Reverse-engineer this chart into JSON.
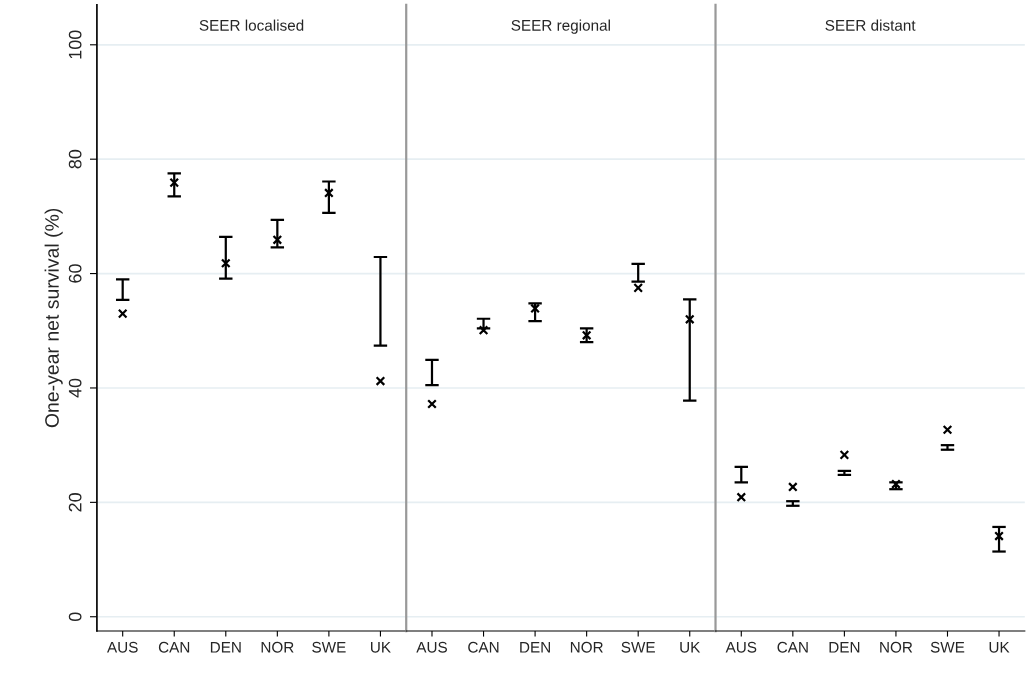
{
  "chart_data": [
    {
      "type": "scatter",
      "title": "SEER localised",
      "ylabel": "One-year net survival (%)",
      "categories": [
        "AUS",
        "CAN",
        "DEN",
        "NOR",
        "SWE",
        "UK"
      ],
      "ylim": [
        -2.5,
        107
      ],
      "yticks": [
        0,
        20,
        40,
        60,
        80,
        100
      ],
      "grid": "y",
      "marker": "cross",
      "series": [
        {
          "color": "#000000",
          "values": [
            53.0,
            75.9,
            61.8,
            65.9,
            74.1,
            41.2
          ],
          "errors": [
            [
              55.4,
              59.0
            ],
            [
              73.5,
              77.5
            ],
            [
              59.1,
              66.4
            ],
            [
              64.6,
              69.4
            ],
            [
              70.6,
              76.1
            ],
            [
              47.4,
              62.9
            ]
          ]
        }
      ]
    },
    {
      "type": "scatter",
      "title": "SEER regional",
      "categories": [
        "AUS",
        "CAN",
        "DEN",
        "NOR",
        "SWE",
        "UK"
      ],
      "ylim": [
        -2.5,
        107
      ],
      "yticks": [
        0,
        20,
        40,
        60,
        80,
        100
      ],
      "grid": "y",
      "marker": "cross",
      "tick_labels": "x",
      "series": [
        {
          "color": "#000000",
          "values": [
            37.2,
            50.1,
            53.9,
            49.2,
            57.5,
            52.0
          ],
          "errors": [
            [
              40.5,
              44.9
            ],
            [
              50.4,
              52.1
            ],
            [
              51.7,
              54.8
            ],
            [
              48.0,
              50.4
            ],
            [
              58.6,
              61.7
            ],
            [
              37.8,
              55.5
            ]
          ]
        }
      ]
    },
    {
      "type": "scatter",
      "title": "SEER distant",
      "categories": [
        "AUS",
        "CAN",
        "DEN",
        "NOR",
        "SWE",
        "UK"
      ],
      "ylim": [
        -2.5,
        107
      ],
      "yticks": [
        0,
        20,
        40,
        60,
        80,
        100
      ],
      "grid": "y",
      "marker": "cross",
      "tick_labels": "x",
      "series": [
        {
          "color": "#000000",
          "values": [
            20.9,
            22.7,
            28.3,
            23.2,
            32.7,
            14.1
          ],
          "errors": [
            [
              23.5,
              26.2
            ],
            [
              19.4,
              20.2
            ],
            [
              24.8,
              25.5
            ],
            [
              22.3,
              23.5
            ],
            [
              29.2,
              30.0
            ],
            [
              11.4,
              15.7
            ]
          ]
        }
      ]
    }
  ]
}
